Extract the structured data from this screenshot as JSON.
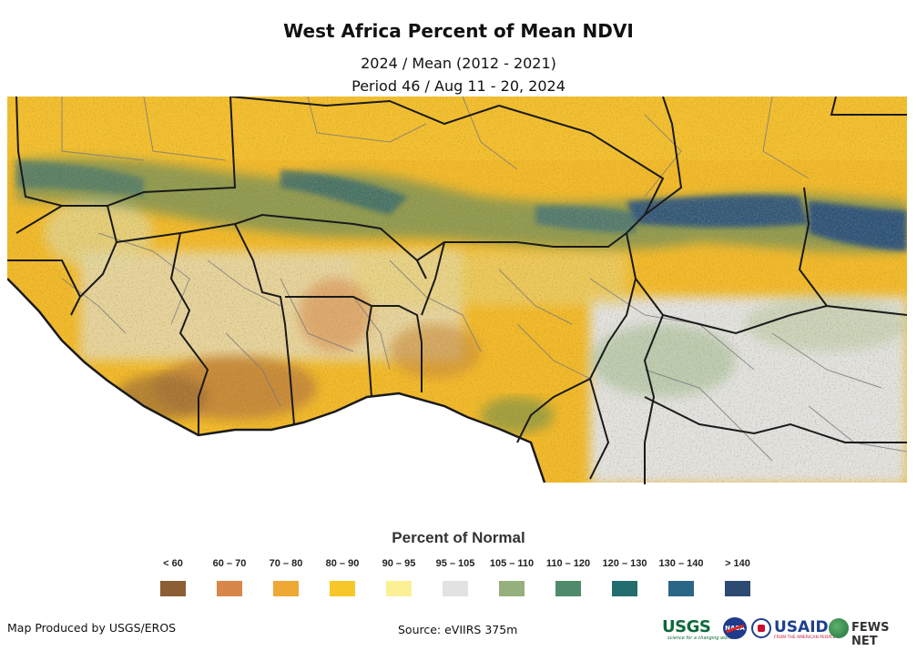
{
  "header": {
    "title": "West Africa Percent of Mean NDVI",
    "subtitle_1": "2024 / Mean (2012 - 2021)",
    "subtitle_2": "Period 46 / Aug 11 - 20, 2024"
  },
  "legend": {
    "title": "Percent of Normal",
    "items": [
      {
        "label": "< 60",
        "color": "#8b5e34"
      },
      {
        "label": "60 – 70",
        "color": "#d8864a"
      },
      {
        "label": "70 – 80",
        "color": "#eea834"
      },
      {
        "label": "80 – 90",
        "color": "#f7c72a"
      },
      {
        "label": "90 – 95",
        "color": "#fbf096"
      },
      {
        "label": "95 – 105",
        "color": "#e2e2e2"
      },
      {
        "label": "105 – 110",
        "color": "#95b07c"
      },
      {
        "label": "110 – 120",
        "color": "#4f8b6b"
      },
      {
        "label": "120 – 130",
        "color": "#226e6e"
      },
      {
        "label": "130 – 140",
        "color": "#2a6686"
      },
      {
        "label": "> 140",
        "color": "#2d4a73"
      }
    ]
  },
  "footer": {
    "credit": "Map Produced by USGS/EROS",
    "source": "Source: eVIIRS 375m"
  },
  "logos": {
    "usgs": "USGS",
    "usgs_tagline": "science for a changing world",
    "nasa": "NASA",
    "usaid": "USAID",
    "usaid_tagline": "FROM THE AMERICAN PEOPLE",
    "fews": "FEWS NET"
  }
}
